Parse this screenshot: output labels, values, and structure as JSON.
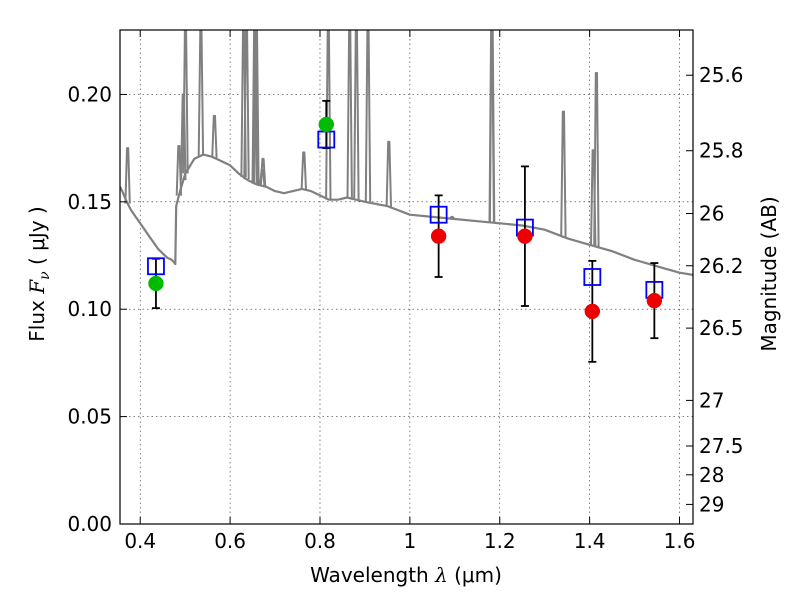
{
  "chart_data": {
    "type": "scatter",
    "xlabel_prefix": "Wavelength  ",
    "xlabel_lambda": "λ",
    "xlabel_unit": " (μm)",
    "ylabel_prefix": "Flux  ",
    "ylabel_symbol": "F",
    "ylabel_sub": "ν",
    "ylabel_unit": "  ( μJy )",
    "y2label": "Magnitude (AB)",
    "xlim": [
      0.355,
      1.63
    ],
    "ylim": [
      0.0,
      0.23
    ],
    "x_ticks": [
      0.4,
      0.6,
      0.8,
      1.0,
      1.2,
      1.4,
      1.6
    ],
    "x_tick_labels": [
      "0.4",
      "0.6",
      "0.8",
      "1",
      "1.2",
      "1.4",
      "1.6"
    ],
    "y_ticks": [
      0.0,
      0.05,
      0.1,
      0.15,
      0.2
    ],
    "y_tick_labels": [
      "0.00",
      "0.05",
      "0.10",
      "0.15",
      "0.20"
    ],
    "mag_ticks": [
      25.6,
      25.8,
      26,
      26.2,
      26.5,
      27,
      27.5,
      28,
      29
    ],
    "mag_tick_labels": [
      "25.6",
      "25.8",
      "26",
      "26.2",
      "26.5",
      "27",
      "27.5",
      "28",
      "29"
    ],
    "grid": true,
    "colors": {
      "model": "#808080",
      "model_points": "#0000ff",
      "detections_optical": "#00bb00",
      "detections_nir": "#ee0000",
      "errorbar": "#000000"
    },
    "series": [
      {
        "name": "model_sed",
        "kind": "line",
        "x": [
          0.355,
          0.36,
          0.37,
          0.38,
          0.39,
          0.4,
          0.41,
          0.42,
          0.43,
          0.44,
          0.45,
          0.46,
          0.47,
          0.475,
          0.478,
          0.48,
          0.485,
          0.49,
          0.5,
          0.52,
          0.54,
          0.56,
          0.58,
          0.6,
          0.62,
          0.64,
          0.66,
          0.68,
          0.7,
          0.72,
          0.74,
          0.76,
          0.78,
          0.8,
          0.82,
          0.84,
          0.86,
          0.88,
          0.9,
          0.95,
          1.0,
          1.05,
          1.1,
          1.15,
          1.2,
          1.25,
          1.3,
          1.35,
          1.4,
          1.45,
          1.5,
          1.55,
          1.6,
          1.63
        ],
        "y": [
          0.157,
          0.155,
          0.15,
          0.146,
          0.143,
          0.14,
          0.137,
          0.134,
          0.131,
          0.128,
          0.126,
          0.124,
          0.123,
          0.122,
          0.121,
          0.148,
          0.152,
          0.156,
          0.163,
          0.17,
          0.172,
          0.171,
          0.169,
          0.167,
          0.163,
          0.16,
          0.158,
          0.157,
          0.155,
          0.154,
          0.155,
          0.156,
          0.155,
          0.153,
          0.151,
          0.151,
          0.152,
          0.151,
          0.15,
          0.148,
          0.144,
          0.143,
          0.142,
          0.141,
          0.14,
          0.139,
          0.137,
          0.133,
          0.13,
          0.127,
          0.123,
          0.12,
          0.117,
          0.116
        ]
      },
      {
        "name": "model_sed_emission_lines",
        "kind": "lines",
        "x": [
          0.372,
          0.4861,
          0.4959,
          0.5007,
          0.535,
          0.565,
          0.63,
          0.6364,
          0.6548,
          0.6563,
          0.6584,
          0.6716,
          0.6731,
          0.764,
          0.8186,
          0.8662,
          0.881,
          0.9069,
          0.9531,
          1.0938,
          1.182,
          1.183,
          1.3417,
          1.408,
          1.415
        ],
        "peak": [
          0.175,
          0.176,
          0.2,
          0.23,
          0.23,
          0.19,
          0.23,
          0.23,
          0.23,
          0.23,
          0.23,
          0.165,
          0.17,
          0.173,
          0.23,
          0.23,
          0.23,
          0.23,
          0.178,
          0.143,
          0.23,
          0.23,
          0.192,
          0.174,
          0.21
        ]
      },
      {
        "name": "model_band_fluxes",
        "kind": "scatter",
        "marker": "square-open",
        "x": [
          0.435,
          0.814,
          1.064,
          1.256,
          1.406,
          1.544
        ],
        "y": [
          0.12,
          0.179,
          0.144,
          0.138,
          0.115,
          0.109
        ]
      },
      {
        "name": "observed_optical",
        "kind": "scatter",
        "marker": "circle",
        "x": [
          0.435,
          0.814
        ],
        "y": [
          0.112,
          0.186
        ],
        "err": [
          0.0115,
          0.011
        ]
      },
      {
        "name": "observed_nir",
        "kind": "scatter",
        "marker": "circle",
        "x": [
          1.064,
          1.256,
          1.406,
          1.544
        ],
        "y": [
          0.134,
          0.134,
          0.099,
          0.104
        ],
        "err": [
          0.019,
          0.0325,
          0.0235,
          0.0175
        ]
      }
    ]
  }
}
